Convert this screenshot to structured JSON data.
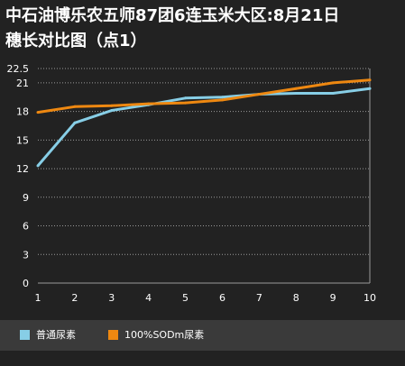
{
  "title_line1": "中石油博乐农五师87团6连玉米大区:8月21日",
  "title_line2": "穗长对比图（点1）",
  "chart_data": {
    "type": "line",
    "x": [
      1,
      2,
      3,
      4,
      5,
      6,
      7,
      8,
      9,
      10
    ],
    "ylim": [
      0,
      22.5
    ],
    "yticks": [
      "0",
      "3",
      "6",
      "9",
      "12",
      "15",
      "18",
      "21",
      "22.5"
    ],
    "xticks": [
      "1",
      "2",
      "3",
      "4",
      "5",
      "6",
      "7",
      "8",
      "9",
      "10"
    ],
    "grid": "horizontal-dotted",
    "legend_position": "bottom",
    "series": [
      {
        "name": "普通尿素",
        "color": "#87cee6",
        "values": [
          12.3,
          16.8,
          18.1,
          18.7,
          19.4,
          19.5,
          19.8,
          19.9,
          19.9,
          20.4
        ]
      },
      {
        "name": "100%SODm尿素",
        "color": "#ee8811",
        "values": [
          17.9,
          18.5,
          18.6,
          18.8,
          18.9,
          19.2,
          19.8,
          20.4,
          21.0,
          21.3
        ]
      }
    ]
  }
}
